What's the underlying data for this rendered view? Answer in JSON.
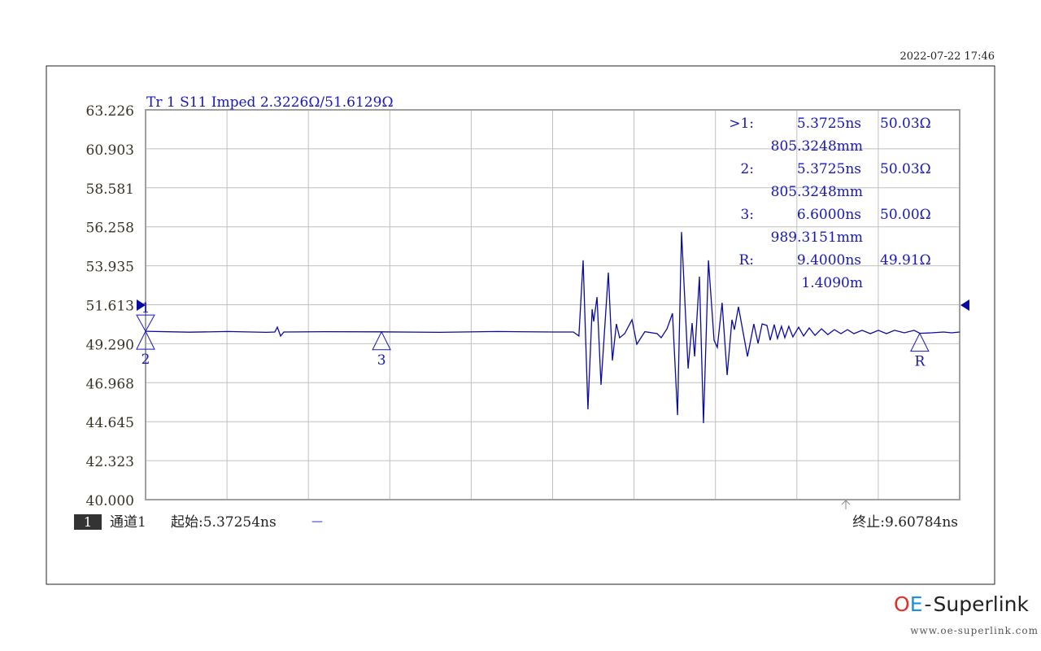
{
  "timestamp": "2022-07-22 17:46",
  "trace_header": "Tr 1  S11 Imped 2.3226Ω/51.6129Ω",
  "markers_table": [
    {
      "label": ">1:",
      "time": "5.3725ns",
      "value": "50.03Ω",
      "distance": "805.3248mm"
    },
    {
      "label": "2:",
      "time": "5.3725ns",
      "value": "50.03Ω",
      "distance": "805.3248mm"
    },
    {
      "label": "3:",
      "time": "6.6000ns",
      "value": "50.00Ω",
      "distance": "989.3151mm"
    },
    {
      "label": "R:",
      "time": "9.4000ns",
      "value": "49.91Ω",
      "distance": "1.4090m"
    }
  ],
  "footer": {
    "channel_badge": "1",
    "channel": "通道1",
    "start": "起始:5.37254ns",
    "dash": "—",
    "stop": "终止:9.60784ns"
  },
  "logo": {
    "oe": "OE",
    "dash": "-",
    "name": "Superlink",
    "url": "www.oe-superlink.com",
    "oe_color": "#e0302a",
    "e_color": "#1e90e0"
  },
  "colors": {
    "trace": "#0a0aa0",
    "grid": "#c0c0c0",
    "frame": "#a0a0a0",
    "marker": "#1818b8"
  },
  "chart_data": {
    "type": "line",
    "title": "Tr 1  S11 Imped 2.3226Ω/51.6129Ω",
    "xlim": [
      5.37254,
      9.60784
    ],
    "ylim": [
      40.0,
      63.226
    ],
    "grid": true,
    "x_divisions": 10,
    "y_ticks": [
      "63.226",
      "60.903",
      "58.581",
      "56.258",
      "53.935",
      "51.613",
      "49.290",
      "46.968",
      "44.645",
      "42.323",
      "40.000"
    ],
    "reference_level": 51.613,
    "markers": [
      {
        "name": "1",
        "x": 5.3725,
        "y": 50.03,
        "style": "down"
      },
      {
        "name": "2",
        "x": 5.3725,
        "y": 50.03,
        "style": "up"
      },
      {
        "name": "3",
        "x": 6.6,
        "y": 50.0,
        "style": "up"
      },
      {
        "name": "R",
        "x": 9.4,
        "y": 49.91,
        "style": "up"
      }
    ],
    "series": [
      {
        "x": [
          5.373,
          5.6,
          5.8,
          6.0,
          6.045,
          6.058,
          6.075,
          6.092,
          6.3,
          6.6,
          6.9,
          7.2,
          7.5,
          7.598,
          7.627,
          7.649,
          7.674,
          7.696,
          7.704,
          7.721,
          7.742,
          7.78,
          7.801,
          7.822,
          7.839,
          7.865,
          7.903,
          7.928,
          7.97,
          8.034,
          8.055,
          8.085,
          8.114,
          8.14,
          8.161,
          8.195,
          8.216,
          8.229,
          8.254,
          8.275,
          8.301,
          8.33,
          8.347,
          8.372,
          8.398,
          8.423,
          8.436,
          8.457,
          8.504,
          8.537,
          8.559,
          8.58,
          8.605,
          8.622,
          8.643,
          8.66,
          8.681,
          8.698,
          8.719,
          8.74,
          8.77,
          8.796,
          8.825,
          8.855,
          8.889,
          8.922,
          8.956,
          8.99,
          9.024,
          9.058,
          9.1,
          9.143,
          9.185,
          9.227,
          9.269,
          9.32,
          9.371,
          9.401,
          9.46,
          9.524,
          9.566,
          9.608
        ],
        "y": [
          50.03,
          49.98,
          50.02,
          49.97,
          49.99,
          50.28,
          49.75,
          49.99,
          50.01,
          50.0,
          49.97,
          50.02,
          49.99,
          49.99,
          49.75,
          54.26,
          45.38,
          51.35,
          50.62,
          52.07,
          46.84,
          53.53,
          48.29,
          50.47,
          49.65,
          49.89,
          50.72,
          49.26,
          50.01,
          49.89,
          49.65,
          50.18,
          51.1,
          45.04,
          55.95,
          47.81,
          50.52,
          48.53,
          53.29,
          44.56,
          54.26,
          49.5,
          49.07,
          51.73,
          47.42,
          50.72,
          50.13,
          51.49,
          48.53,
          50.47,
          49.31,
          50.47,
          50.38,
          49.5,
          50.43,
          49.6,
          50.33,
          49.65,
          50.33,
          49.7,
          50.28,
          49.75,
          50.23,
          49.79,
          50.18,
          49.84,
          50.13,
          49.89,
          50.13,
          49.89,
          50.09,
          49.89,
          50.09,
          49.89,
          50.09,
          49.94,
          50.09,
          49.91,
          49.94,
          49.99,
          49.94,
          49.99
        ]
      }
    ]
  }
}
